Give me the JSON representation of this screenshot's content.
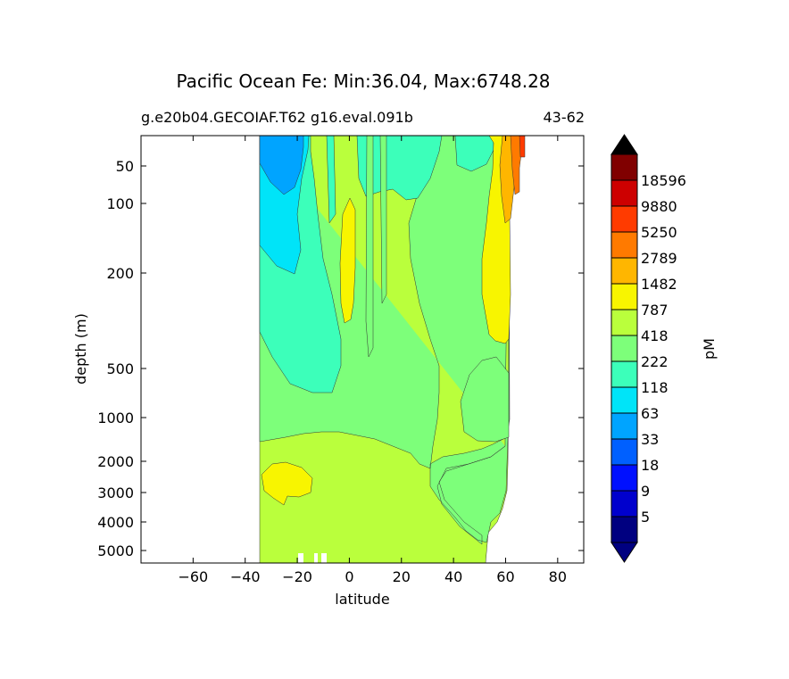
{
  "chart_data": {
    "type": "heatmap",
    "plot": "filled-contour",
    "title": "Pacific Ocean Fe: Min:36.04, Max:6748.28",
    "subtitle_left": "g.e20b04.GECOIAF.T62 g16.eval.091b",
    "subtitle_right": "43-62",
    "xlabel": "latitude",
    "ylabel": "depth (m)",
    "xlim": [
      -80,
      90
    ],
    "ylim_depth": [
      5,
      5500
    ],
    "x_ticks": [
      -60,
      -40,
      -20,
      0,
      20,
      40,
      60,
      80
    ],
    "x_tick_labels": [
      "−60",
      "−40",
      "−20",
      "0",
      "20",
      "40",
      "60",
      "80"
    ],
    "y_ticks": [
      50,
      100,
      200,
      500,
      1000,
      2000,
      3000,
      4000,
      5000
    ],
    "y_tick_labels": [
      "50",
      "100",
      "200",
      "500",
      "1000",
      "2000",
      "3000",
      "4000",
      "5000"
    ],
    "colorbar": {
      "label": "pM",
      "extend": "both",
      "levels": [
        5,
        9,
        18,
        33,
        63,
        118,
        222,
        418,
        787,
        1482,
        2789,
        5250,
        9880,
        18596
      ],
      "tick_labels": [
        "5",
        "9",
        "18",
        "33",
        "63",
        "118",
        "222",
        "418",
        "787",
        "1482",
        "2789",
        "5250",
        "9880",
        "18596"
      ],
      "colors": [
        "#000080",
        "#0000cd",
        "#0010ff",
        "#0060ff",
        "#00a4ff",
        "#00e4f8",
        "#3cffba",
        "#7dff7a",
        "#baff3c",
        "#f8f500",
        "#ffb600",
        "#ff7a00",
        "#ff3b00",
        "#cd0000",
        "#800000"
      ],
      "under_color": "#000080",
      "over_color": "#000000"
    },
    "data_extent": {
      "lat_min": -34,
      "lat_max": 68
    },
    "regions": [
      {
        "name": "background-dominant",
        "value_range": [
          418,
          787
        ]
      },
      {
        "name": "south-surface",
        "lat_range": [
          -34,
          -19
        ],
        "depth_range": [
          10,
          60
        ],
        "value_range": [
          33,
          63
        ]
      },
      {
        "name": "south-upper-tongue",
        "lat_range": [
          -34,
          -12
        ],
        "depth_range": [
          10,
          250
        ],
        "value_range": [
          63,
          118
        ]
      },
      {
        "name": "south-intermediate",
        "lat_range": [
          -34,
          -2
        ],
        "depth_range": [
          10,
          1500
        ],
        "value_range": [
          118,
          222
        ]
      },
      {
        "name": "mid-water-body",
        "lat_range": [
          -34,
          56
        ],
        "depth_range": [
          150,
          2500
        ],
        "value_range": [
          222,
          418
        ]
      },
      {
        "name": "equatorial-maximum",
        "lat_range": [
          -3,
          2
        ],
        "depth_range": [
          80,
          500
        ],
        "value_range": [
          787,
          1482
        ]
      },
      {
        "name": "south-deep-patch",
        "lat_range": [
          -33,
          -14
        ],
        "depth_range": [
          2200,
          3300
        ],
        "value_range": [
          787,
          1482
        ]
      },
      {
        "name": "north-surface-high",
        "lat_range": [
          52,
          62
        ],
        "depth_range": [
          10,
          500
        ],
        "value_range": [
          787,
          1482
        ]
      },
      {
        "name": "north-shelf",
        "lat_range": [
          58,
          68
        ],
        "depth_range": [
          10,
          120
        ],
        "value_range": [
          1482,
          5250
        ]
      }
    ]
  }
}
